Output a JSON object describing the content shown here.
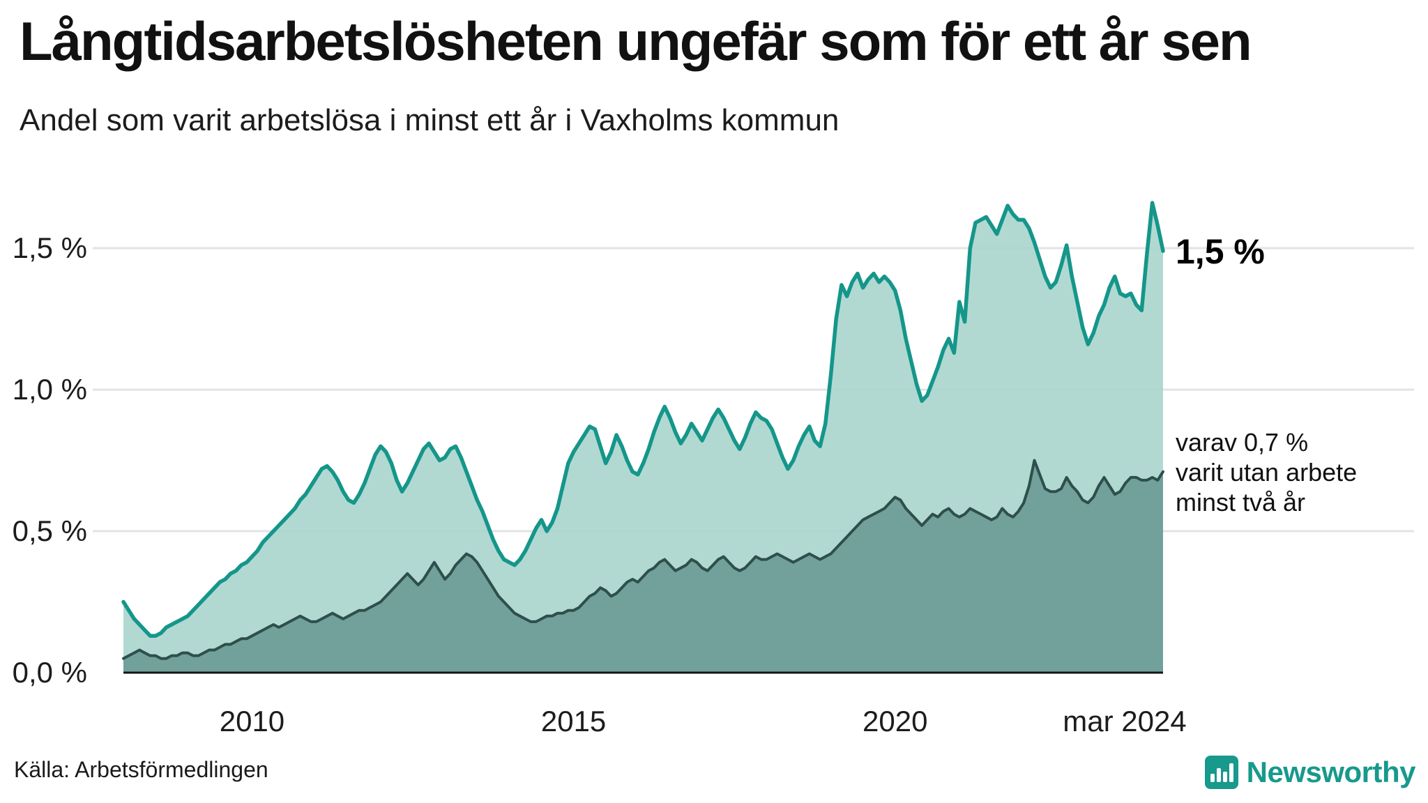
{
  "header": {
    "title": "Långtidsarbetslösheten ungefär som för ett år sen",
    "subtitle": "Andel som varit arbetslösa i minst ett år i Vaxholms kommun"
  },
  "chart_data": {
    "type": "area",
    "title": "Långtidsarbetslösheten ungefär som för ett år sen",
    "subtitle": "Andel som varit arbetslösa i minst ett år i Vaxholms kommun",
    "unit": "%",
    "frequency": "monthly",
    "x_start": "jan 2008",
    "x_end": "mar 2024",
    "ylim": [
      0,
      1.85
    ],
    "grid": true,
    "y_ticks": [
      {
        "label": "1,5 %",
        "value": 1.5
      },
      {
        "label": "1,0 %",
        "value": 1.0
      },
      {
        "label": "0,5 %",
        "value": 0.5
      },
      {
        "label": "0,0 %",
        "value": 0.0
      }
    ],
    "x_ticks": [
      {
        "label": "2010",
        "month_index": 24
      },
      {
        "label": "2015",
        "month_index": 84
      },
      {
        "label": "2020",
        "month_index": 144
      },
      {
        "label": "mar 2024",
        "month_index": 194
      }
    ],
    "series": [
      {
        "name": "Andel som varit arbetslösa i minst ett år",
        "stroke": "#15968a",
        "fill": "#a8d5cd",
        "values": [
          0.25,
          0.22,
          0.19,
          0.17,
          0.15,
          0.13,
          0.13,
          0.14,
          0.16,
          0.17,
          0.18,
          0.19,
          0.2,
          0.22,
          0.24,
          0.26,
          0.28,
          0.3,
          0.32,
          0.33,
          0.35,
          0.36,
          0.38,
          0.39,
          0.41,
          0.43,
          0.46,
          0.48,
          0.5,
          0.52,
          0.54,
          0.56,
          0.58,
          0.61,
          0.63,
          0.66,
          0.69,
          0.72,
          0.73,
          0.71,
          0.68,
          0.64,
          0.61,
          0.6,
          0.63,
          0.67,
          0.72,
          0.77,
          0.8,
          0.78,
          0.74,
          0.68,
          0.64,
          0.67,
          0.71,
          0.75,
          0.79,
          0.81,
          0.78,
          0.75,
          0.76,
          0.79,
          0.8,
          0.76,
          0.71,
          0.66,
          0.61,
          0.57,
          0.52,
          0.47,
          0.43,
          0.4,
          0.39,
          0.38,
          0.4,
          0.43,
          0.47,
          0.51,
          0.54,
          0.5,
          0.53,
          0.58,
          0.66,
          0.74,
          0.78,
          0.81,
          0.84,
          0.87,
          0.86,
          0.8,
          0.74,
          0.78,
          0.84,
          0.8,
          0.75,
          0.71,
          0.7,
          0.74,
          0.79,
          0.85,
          0.9,
          0.94,
          0.9,
          0.85,
          0.81,
          0.84,
          0.88,
          0.85,
          0.82,
          0.86,
          0.9,
          0.93,
          0.9,
          0.86,
          0.82,
          0.79,
          0.83,
          0.88,
          0.92,
          0.9,
          0.89,
          0.86,
          0.81,
          0.76,
          0.72,
          0.75,
          0.8,
          0.84,
          0.87,
          0.82,
          0.8,
          0.88,
          1.05,
          1.25,
          1.37,
          1.33,
          1.38,
          1.41,
          1.36,
          1.39,
          1.41,
          1.38,
          1.4,
          1.38,
          1.35,
          1.28,
          1.18,
          1.1,
          1.02,
          0.96,
          0.98,
          1.03,
          1.08,
          1.14,
          1.18,
          1.13,
          1.31,
          1.24,
          1.5,
          1.59,
          1.6,
          1.61,
          1.58,
          1.55,
          1.6,
          1.65,
          1.62,
          1.6,
          1.6,
          1.57,
          1.52,
          1.46,
          1.4,
          1.36,
          1.38,
          1.44,
          1.51,
          1.4,
          1.31,
          1.22,
          1.16,
          1.2,
          1.26,
          1.3,
          1.36,
          1.4,
          1.34,
          1.33,
          1.34,
          1.3,
          1.28,
          1.48,
          1.66,
          1.58,
          1.49
        ]
      },
      {
        "name": "varav utan arbete minst två år",
        "stroke": "#2e4f4b",
        "fill": "#6f9e99",
        "values": [
          0.05,
          0.06,
          0.07,
          0.08,
          0.07,
          0.06,
          0.06,
          0.05,
          0.05,
          0.06,
          0.06,
          0.07,
          0.07,
          0.06,
          0.06,
          0.07,
          0.08,
          0.08,
          0.09,
          0.1,
          0.1,
          0.11,
          0.12,
          0.12,
          0.13,
          0.14,
          0.15,
          0.16,
          0.17,
          0.16,
          0.17,
          0.18,
          0.19,
          0.2,
          0.19,
          0.18,
          0.18,
          0.19,
          0.2,
          0.21,
          0.2,
          0.19,
          0.2,
          0.21,
          0.22,
          0.22,
          0.23,
          0.24,
          0.25,
          0.27,
          0.29,
          0.31,
          0.33,
          0.35,
          0.33,
          0.31,
          0.33,
          0.36,
          0.39,
          0.36,
          0.33,
          0.35,
          0.38,
          0.4,
          0.42,
          0.41,
          0.39,
          0.36,
          0.33,
          0.3,
          0.27,
          0.25,
          0.23,
          0.21,
          0.2,
          0.19,
          0.18,
          0.18,
          0.19,
          0.2,
          0.2,
          0.21,
          0.21,
          0.22,
          0.22,
          0.23,
          0.25,
          0.27,
          0.28,
          0.3,
          0.29,
          0.27,
          0.28,
          0.3,
          0.32,
          0.33,
          0.32,
          0.34,
          0.36,
          0.37,
          0.39,
          0.4,
          0.38,
          0.36,
          0.37,
          0.38,
          0.4,
          0.39,
          0.37,
          0.36,
          0.38,
          0.4,
          0.41,
          0.39,
          0.37,
          0.36,
          0.37,
          0.39,
          0.41,
          0.4,
          0.4,
          0.41,
          0.42,
          0.41,
          0.4,
          0.39,
          0.4,
          0.41,
          0.42,
          0.41,
          0.4,
          0.41,
          0.42,
          0.44,
          0.46,
          0.48,
          0.5,
          0.52,
          0.54,
          0.55,
          0.56,
          0.57,
          0.58,
          0.6,
          0.62,
          0.61,
          0.58,
          0.56,
          0.54,
          0.52,
          0.54,
          0.56,
          0.55,
          0.57,
          0.58,
          0.56,
          0.55,
          0.56,
          0.58,
          0.57,
          0.56,
          0.55,
          0.54,
          0.55,
          0.58,
          0.56,
          0.55,
          0.57,
          0.6,
          0.66,
          0.75,
          0.7,
          0.65,
          0.64,
          0.64,
          0.65,
          0.69,
          0.66,
          0.64,
          0.61,
          0.6,
          0.62,
          0.66,
          0.69,
          0.66,
          0.63,
          0.64,
          0.67,
          0.69,
          0.69,
          0.68,
          0.68,
          0.69,
          0.68,
          0.71
        ]
      }
    ],
    "annotations": {
      "last_value_label": "1,5 %",
      "secondary": [
        "varav 0,7 %",
        "varit utan arbete",
        "minst två år"
      ]
    },
    "colors": {
      "gridline": "#e2e3e6",
      "axis": "#141414",
      "line_primary": "#15968a",
      "fill_primary": "#a8d5cd",
      "line_secondary": "#2e4f4b",
      "fill_secondary": "#6f9e99"
    }
  },
  "footer": {
    "source": "Källa: Arbetsförmedlingen",
    "brand": "Newsworthy",
    "brand_color": "#17998c"
  }
}
